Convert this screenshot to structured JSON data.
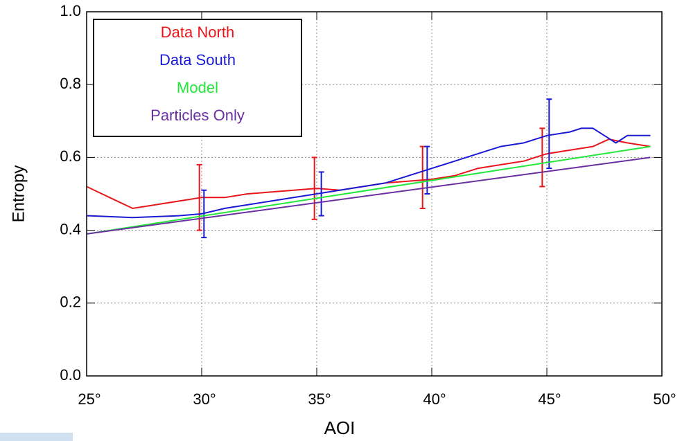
{
  "chart_data": {
    "type": "line",
    "xlabel": "AOI",
    "ylabel": "Entropy",
    "xlim": [
      25,
      50
    ],
    "ylim": [
      0,
      1
    ],
    "xticks": [
      {
        "value": 25,
        "label": "25°"
      },
      {
        "value": 30,
        "label": "30°"
      },
      {
        "value": 35,
        "label": "35°"
      },
      {
        "value": 40,
        "label": "40°"
      },
      {
        "value": 45,
        "label": "45°"
      },
      {
        "value": 50,
        "label": "50°"
      }
    ],
    "yticks": [
      {
        "value": 0,
        "label": "0.0"
      },
      0.2,
      0.4,
      0.6,
      0.8,
      {
        "value": 1,
        "label": "1.0"
      }
    ],
    "grid": true,
    "legend": "upper left",
    "series": [
      {
        "name": "Data North",
        "color": "#e8161b",
        "x": [
          25,
          26,
          27,
          28,
          29,
          30,
          31,
          32,
          33,
          34,
          35,
          36,
          37,
          38,
          39,
          40,
          41,
          42,
          43,
          44,
          45,
          46,
          47,
          47.7,
          48.5,
          49.5
        ],
        "values": [
          0.52,
          0.49,
          0.46,
          0.47,
          0.48,
          0.49,
          0.49,
          0.5,
          0.505,
          0.51,
          0.515,
          0.51,
          0.52,
          0.53,
          0.535,
          0.54,
          0.55,
          0.57,
          0.58,
          0.59,
          0.61,
          0.62,
          0.63,
          0.65,
          0.64,
          0.63
        ],
        "errorbars": [
          {
            "x": 29.9,
            "low": 0.4,
            "high": 0.58
          },
          {
            "x": 34.9,
            "low": 0.43,
            "high": 0.6
          },
          {
            "x": 39.6,
            "low": 0.46,
            "high": 0.63
          },
          {
            "x": 44.8,
            "low": 0.52,
            "high": 0.68
          }
        ]
      },
      {
        "name": "Data South",
        "color": "#1a1ad6",
        "x": [
          25,
          27,
          29,
          30,
          31,
          32,
          33,
          34,
          35,
          36,
          37,
          38,
          39,
          40,
          41,
          42,
          43,
          44,
          45,
          46,
          46.5,
          47,
          47.5,
          48,
          48.5,
          49,
          49.5
        ],
        "values": [
          0.44,
          0.435,
          0.44,
          0.445,
          0.46,
          0.47,
          0.48,
          0.49,
          0.5,
          0.51,
          0.52,
          0.53,
          0.55,
          0.57,
          0.59,
          0.61,
          0.63,
          0.64,
          0.66,
          0.67,
          0.68,
          0.68,
          0.66,
          0.64,
          0.66,
          0.66,
          0.66
        ],
        "errorbars": [
          {
            "x": 30.1,
            "low": 0.38,
            "high": 0.51
          },
          {
            "x": 35.2,
            "low": 0.44,
            "high": 0.56
          },
          {
            "x": 39.8,
            "low": 0.5,
            "high": 0.63
          },
          {
            "x": 45.1,
            "low": 0.57,
            "high": 0.76
          }
        ]
      },
      {
        "name": "Model",
        "color": "#22e83a",
        "x": [
          25,
          49.5
        ],
        "values": [
          0.39,
          0.63
        ]
      },
      {
        "name": "Particles Only",
        "color": "#6a2fa0",
        "x": [
          25,
          49.5
        ],
        "values": [
          0.39,
          0.6
        ]
      }
    ]
  }
}
